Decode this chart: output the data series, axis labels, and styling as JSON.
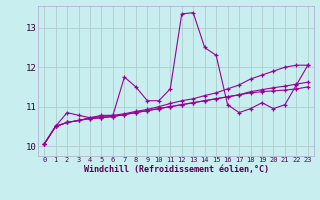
{
  "xlabel": "Windchill (Refroidissement éolien,°C)",
  "bg_color": "#c8eef0",
  "grid_color": "#b0cccc",
  "line_color": "#990099",
  "xlim": [
    -0.5,
    23.5
  ],
  "ylim": [
    9.75,
    13.55
  ],
  "yticks": [
    10,
    11,
    12,
    13
  ],
  "xticks": [
    0,
    1,
    2,
    3,
    4,
    5,
    6,
    7,
    8,
    9,
    10,
    11,
    12,
    13,
    14,
    15,
    16,
    17,
    18,
    19,
    20,
    21,
    22,
    23
  ],
  "series": [
    [
      10.05,
      10.5,
      10.85,
      10.78,
      10.72,
      10.78,
      10.78,
      11.75,
      11.5,
      11.15,
      11.15,
      11.45,
      13.35,
      13.38,
      12.5,
      12.3,
      11.05,
      10.85,
      10.95,
      11.1,
      10.95,
      11.05,
      11.55,
      12.05
    ],
    [
      10.05,
      10.5,
      10.6,
      10.65,
      10.72,
      10.75,
      10.78,
      10.82,
      10.88,
      10.93,
      11.0,
      11.08,
      11.15,
      11.2,
      11.28,
      11.35,
      11.45,
      11.55,
      11.7,
      11.8,
      11.9,
      12.0,
      12.05,
      12.05
    ],
    [
      10.05,
      10.5,
      10.6,
      10.65,
      10.7,
      10.72,
      10.75,
      10.8,
      10.85,
      10.9,
      10.95,
      11.0,
      11.05,
      11.1,
      11.15,
      11.2,
      11.25,
      11.3,
      11.38,
      11.43,
      11.48,
      11.52,
      11.57,
      11.62
    ],
    [
      10.05,
      10.5,
      10.6,
      10.65,
      10.7,
      10.72,
      10.75,
      10.8,
      10.85,
      10.9,
      10.95,
      11.0,
      11.05,
      11.1,
      11.15,
      11.2,
      11.25,
      11.3,
      11.35,
      11.38,
      11.4,
      11.42,
      11.45,
      11.5
    ]
  ]
}
